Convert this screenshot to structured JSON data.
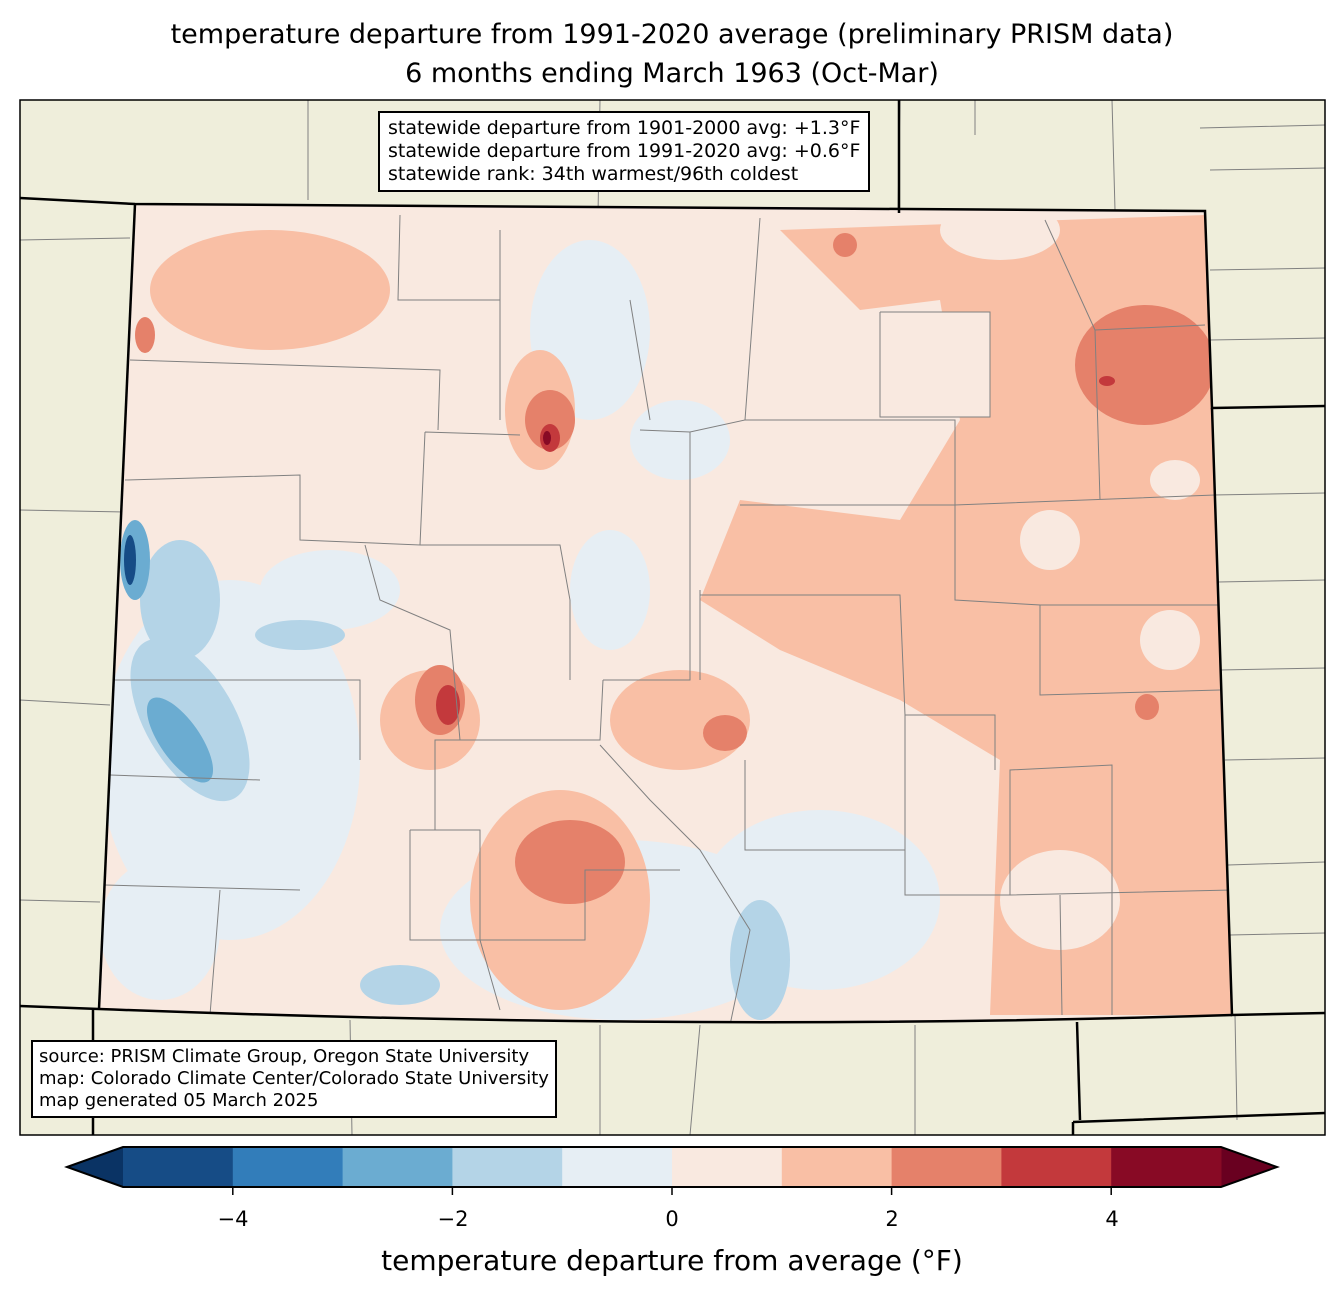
{
  "title": {
    "line1": "temperature departure from 1991-2020 average (preliminary PRISM data)",
    "line2": "6 months ending March 1963 (Oct-Mar)"
  },
  "stats": {
    "line1": "statewide departure from 1901-2000 avg: +1.3°F",
    "line2": "statewide departure from 1991-2020 avg: +0.6°F",
    "line3": "statewide rank: 34th warmest/96th coldest"
  },
  "source": {
    "line1": "source: PRISM Climate Group, Oregon State University",
    "line2": "map: Colorado Climate Center/Colorado State University",
    "line3": "map generated 05 March 2025"
  },
  "colorbar": {
    "label": "temperature departure from average (°F)",
    "ticks": [
      "−4",
      "−2",
      "0",
      "2",
      "4"
    ],
    "bounds": [
      -5,
      -4,
      -3,
      -2,
      -1,
      0,
      1,
      2,
      3,
      4,
      5
    ],
    "colors": [
      "#164c86",
      "#327dba",
      "#6bacd1",
      "#b4d4e7",
      "#e6eef4",
      "#f9e9e0",
      "#f9bfa5",
      "#e5816a",
      "#c3393c",
      "#880a25"
    ],
    "extend_low": "#0a3364",
    "extend_high": "#690020"
  },
  "map_colors": {
    "land": "#efeedb",
    "county_line": "#808080"
  }
}
